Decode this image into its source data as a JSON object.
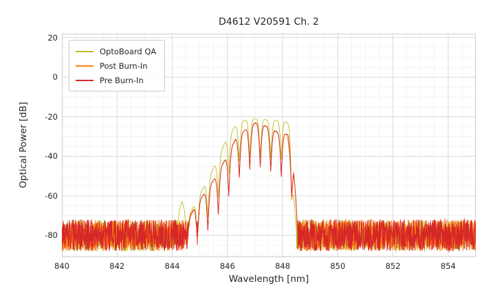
{
  "figure": {
    "title": "D4612 V20591 Ch. 2",
    "xlabel": "Wavelength [nm]",
    "ylabel": "Optical Power [dB]"
  },
  "chart_data": {
    "type": "line",
    "title": "D4612 V20591 Ch. 2",
    "xlabel": "Wavelength [nm]",
    "ylabel": "Optical Power [dB]",
    "xlim": [
      840,
      855
    ],
    "ylim": [
      -91,
      22
    ],
    "xticks": [
      840,
      842,
      844,
      846,
      848,
      850,
      852,
      854
    ],
    "yticks": [
      20,
      0,
      -20,
      -40,
      -60,
      -80
    ],
    "x_minor_step": 0.5,
    "y_minor_step": 5,
    "grid": true,
    "grid_major_color": "#d9d9d9",
    "grid_minor_color": "#ececec",
    "plot_border_color": "#cccccc",
    "legend_position": "upper-left",
    "series": [
      {
        "name": "OptoBoard QA",
        "color": "#bcbd22",
        "noise_floor": {
          "mean": -80,
          "amplitude": 8,
          "seed": 11
        },
        "signal": {
          "range": [
            844.05,
            848.5
          ],
          "mode_spacing": 0.38,
          "mode_center": 847.0,
          "notch_depth": 20,
          "envelope_keypoints": [
            [
              844.05,
              -76
            ],
            [
              844.35,
              -63
            ],
            [
              844.6,
              -70
            ],
            [
              844.9,
              -62
            ],
            [
              845.2,
              -54
            ],
            [
              845.6,
              -43
            ],
            [
              846.0,
              -30
            ],
            [
              846.4,
              -23
            ],
            [
              846.8,
              -21
            ],
            [
              847.2,
              -21
            ],
            [
              847.6,
              -22
            ],
            [
              848.0,
              -21.5
            ],
            [
              848.25,
              -24
            ],
            [
              848.45,
              -68
            ],
            [
              848.5,
              -78
            ]
          ]
        }
      },
      {
        "name": "Post Burn-In",
        "color": "#ff7f0e",
        "noise_floor": {
          "mean": -80,
          "amplitude": 8,
          "seed": 22
        },
        "signal": {
          "range": [
            844.4,
            848.55
          ],
          "mode_spacing": 0.38,
          "mode_center": 847.0,
          "notch_depth": 22,
          "envelope_keypoints": [
            [
              844.4,
              -76
            ],
            [
              844.8,
              -66
            ],
            [
              845.1,
              -60
            ],
            [
              845.5,
              -52
            ],
            [
              845.9,
              -42
            ],
            [
              846.3,
              -31
            ],
            [
              846.7,
              -26
            ],
            [
              847.0,
              -23
            ],
            [
              847.4,
              -25
            ],
            [
              847.8,
              -28
            ],
            [
              848.15,
              -29
            ],
            [
              848.4,
              -45
            ],
            [
              848.55,
              -78
            ]
          ]
        }
      },
      {
        "name": "Pre Burn-In",
        "color": "#d62728",
        "noise_floor": {
          "mean": -80,
          "amplitude": 8,
          "seed": 33
        },
        "signal": {
          "range": [
            844.45,
            848.55
          ],
          "mode_spacing": 0.38,
          "mode_center": 847.0,
          "notch_depth": 22,
          "envelope_keypoints": [
            [
              844.45,
              -76
            ],
            [
              844.85,
              -65
            ],
            [
              845.15,
              -59
            ],
            [
              845.55,
              -51
            ],
            [
              845.95,
              -41
            ],
            [
              846.35,
              -30
            ],
            [
              846.7,
              -26
            ],
            [
              847.05,
              -23
            ],
            [
              847.45,
              -25
            ],
            [
              847.85,
              -28
            ],
            [
              848.2,
              -29
            ],
            [
              848.4,
              -44
            ],
            [
              848.55,
              -78
            ]
          ]
        }
      }
    ]
  }
}
